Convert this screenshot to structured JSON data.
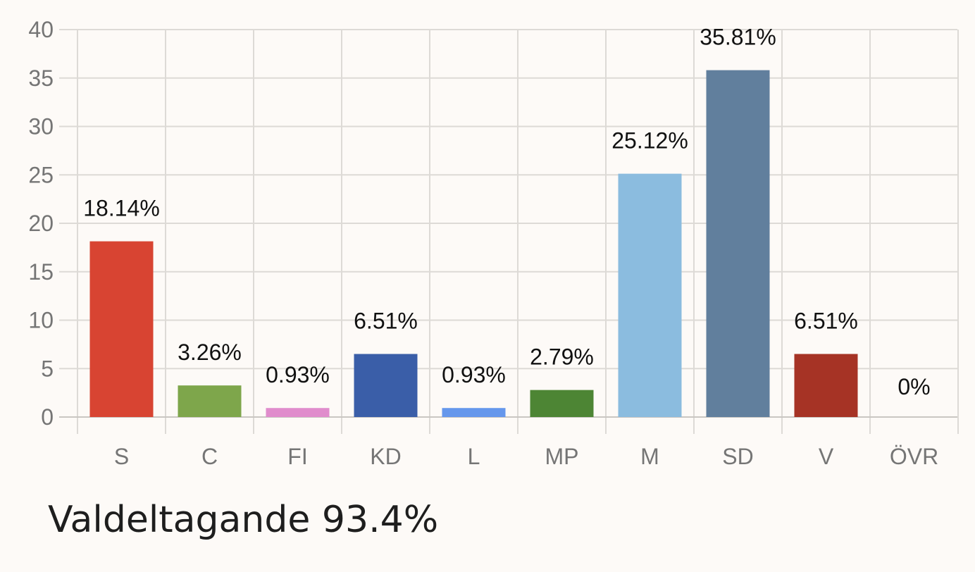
{
  "chart_data": {
    "type": "bar",
    "categories": [
      "S",
      "C",
      "FI",
      "KD",
      "L",
      "MP",
      "M",
      "SD",
      "V",
      "ÖVR"
    ],
    "values": [
      18.14,
      3.26,
      0.93,
      6.51,
      0.93,
      2.79,
      25.12,
      35.81,
      6.51,
      0
    ],
    "data_labels": [
      "18.14%",
      "3.26%",
      "0.93%",
      "6.51%",
      "0.93%",
      "2.79%",
      "25.12%",
      "35.81%",
      "6.51%",
      "0%"
    ],
    "colors": [
      "#d84432",
      "#7ea64b",
      "#e08ccc",
      "#3a5ea8",
      "#6597ec",
      "#4d8534",
      "#8bbcdf",
      "#617f9d",
      "#a63325",
      "#bbbbbb"
    ],
    "ylim": [
      0,
      40
    ],
    "yticks": [
      0,
      5,
      10,
      15,
      20,
      25,
      30,
      35,
      40
    ],
    "grid": true,
    "title": "",
    "xlabel": "",
    "ylabel": ""
  },
  "footer": {
    "turnout_text": "Valdeltagande 93.4%"
  }
}
